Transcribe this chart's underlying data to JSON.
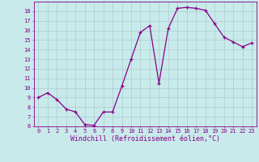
{
  "x": [
    0,
    1,
    2,
    3,
    4,
    5,
    6,
    7,
    8,
    9,
    10,
    11,
    12,
    13,
    14,
    15,
    16,
    17,
    18,
    19,
    20,
    21,
    22,
    23
  ],
  "y": [
    9.0,
    9.5,
    8.8,
    7.8,
    7.5,
    6.2,
    6.1,
    7.5,
    7.5,
    10.2,
    13.0,
    15.8,
    16.5,
    10.5,
    16.2,
    18.3,
    18.4,
    18.3,
    18.1,
    16.7,
    15.3,
    14.8,
    14.3,
    14.7
  ],
  "line_color": "#880088",
  "marker": "+",
  "bg_color": "#c8eaea",
  "grid_color": "#aacccc",
  "axis_color": "#880088",
  "xlabel": "Windchill (Refroidissement éolien,°C)",
  "ylim": [
    6,
    19
  ],
  "xlim": [
    -0.5,
    23.5
  ],
  "yticks": [
    6,
    7,
    8,
    9,
    10,
    11,
    12,
    13,
    14,
    15,
    16,
    17,
    18
  ],
  "xticks": [
    0,
    1,
    2,
    3,
    4,
    5,
    6,
    7,
    8,
    9,
    10,
    11,
    12,
    13,
    14,
    15,
    16,
    17,
    18,
    19,
    20,
    21,
    22,
    23
  ],
  "tick_fontsize": 5.0,
  "label_fontsize": 6.0,
  "markersize": 3.5,
  "linewidth": 0.9
}
